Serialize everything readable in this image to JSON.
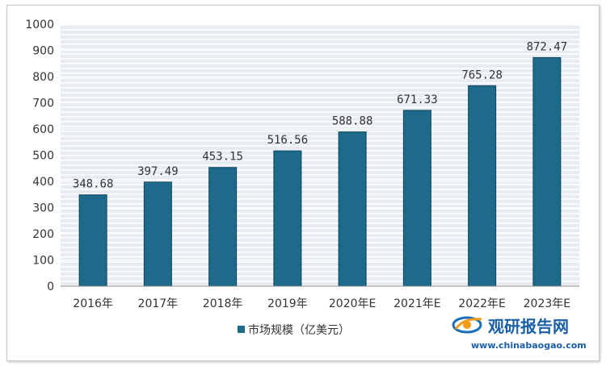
{
  "chart_data": {
    "type": "bar",
    "categories": [
      "2016年",
      "2017年",
      "2018年",
      "2019年",
      "2020年E",
      "2021年E",
      "2022年E",
      "2023年E"
    ],
    "values": [
      348.68,
      397.49,
      453.15,
      516.56,
      588.88,
      671.33,
      765.28,
      872.47
    ],
    "value_labels": [
      "348.68",
      "397.49",
      "453.15",
      "516.56",
      "588.88",
      "671.33",
      "765.28",
      "872.47"
    ],
    "series": [
      {
        "name": "市场规模（亿美元）",
        "values": [
          348.68,
          397.49,
          453.15,
          516.56,
          588.88,
          671.33,
          765.28,
          872.47
        ]
      }
    ],
    "ylim": [
      0,
      1000
    ],
    "yticks": [
      0,
      100,
      200,
      300,
      400,
      500,
      600,
      700,
      800,
      900,
      1000
    ],
    "grid": true,
    "legend_position": "bottom-left",
    "colors": {
      "bar": "#1e6a8a",
      "bar_edge": "#0f4560",
      "plot_background": "#e6ecf1",
      "grid": "#ffffff"
    },
    "title": "",
    "xlabel": "",
    "ylabel": ""
  },
  "watermark": {
    "brand": "观研报告网",
    "url": "www.chinabaogao.com",
    "icon": "globe-swoosh-logo"
  }
}
